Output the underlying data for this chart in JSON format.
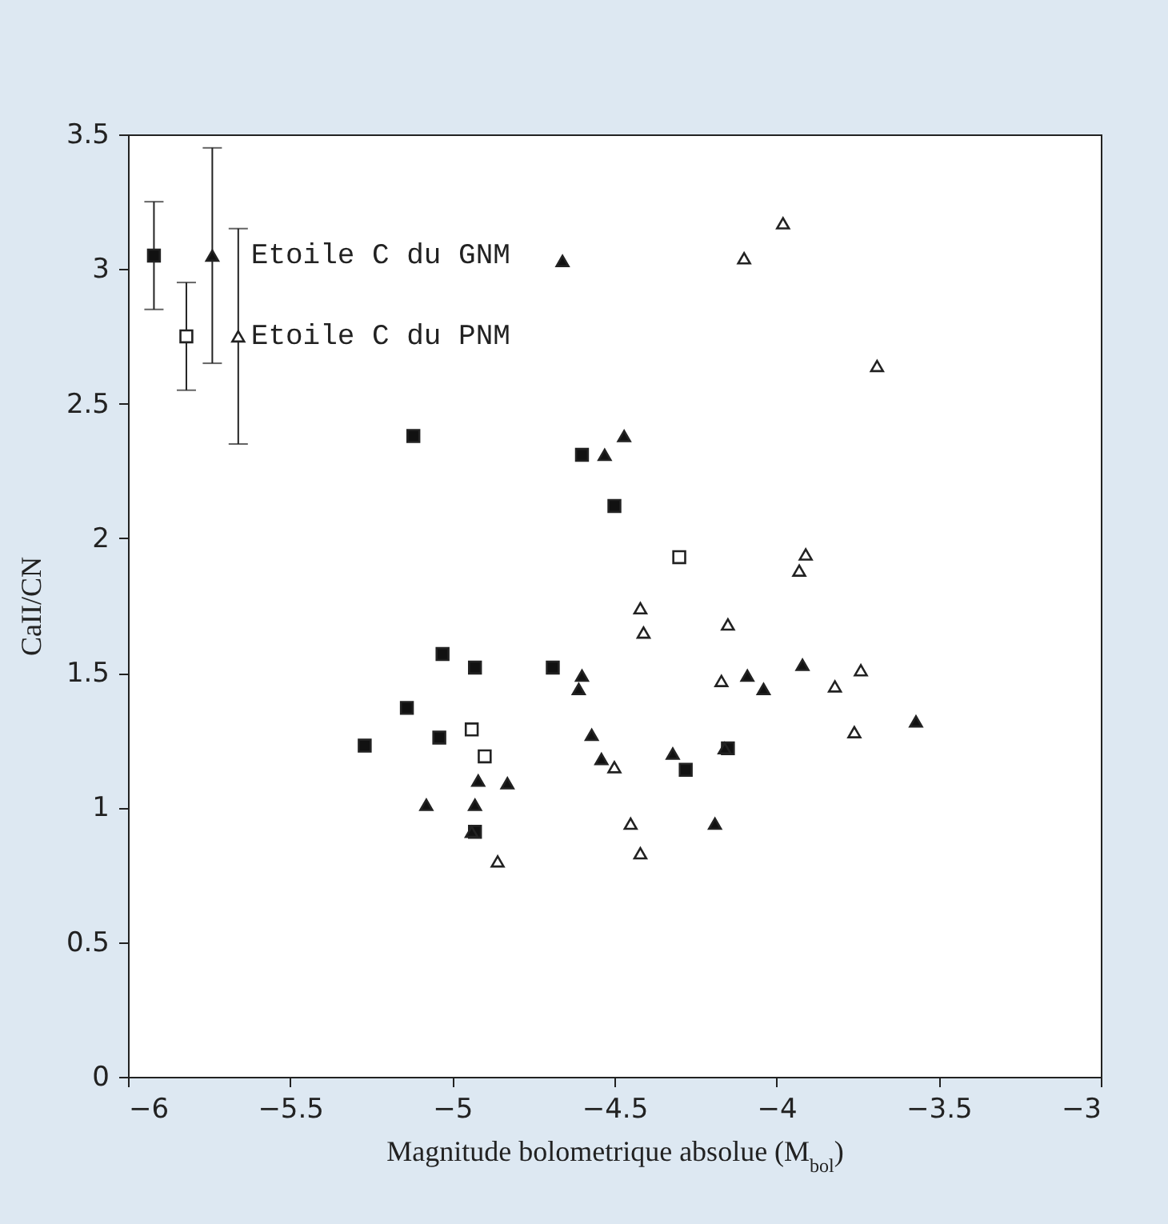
{
  "chart_data": {
    "type": "scatter",
    "xlabel": "Magnitude bolometrique absolue (M$_{bol}$)",
    "ylabel": "CaII/CN",
    "xlim": [
      -6,
      -3
    ],
    "xticks": [
      -6,
      -5.5,
      -5,
      -4.5,
      -4,
      -3.5,
      -3
    ],
    "ylim": [
      0,
      3.5
    ],
    "yticks": [
      0,
      0.5,
      1,
      1.5,
      2,
      2.5,
      3,
      3.5
    ],
    "grid": false,
    "annotations": [
      {
        "text": "Etoile C du GNM",
        "x": -5.66,
        "y": 3.05
      },
      {
        "text": "Etoile C du PNM",
        "x": -5.66,
        "y": 2.75
      }
    ],
    "series": [
      {
        "color": "#111111",
        "marker": "square",
        "x": [
          -5.92
        ],
        "values": [
          3.05
        ],
        "errors": [
          0.2
        ]
      },
      {
        "color": "#ffffff",
        "marker": "square",
        "x": [
          -5.82
        ],
        "values": [
          2.75
        ],
        "errors": [
          0.2
        ]
      },
      {
        "color": "#111111",
        "marker": "triangle",
        "x": [
          -5.74
        ],
        "values": [
          3.05
        ],
        "errors": [
          0.4
        ]
      },
      {
        "color": "#ffffff",
        "marker": "triangle",
        "x": [
          -5.66
        ],
        "values": [
          2.75
        ],
        "errors": [
          0.4
        ]
      },
      {
        "color": "#111111",
        "marker": "square",
        "x": [
          -5.12,
          -4.6,
          -4.5,
          -5.03,
          -4.93,
          -4.69,
          -5.14,
          -5.04,
          -5.27,
          -4.28,
          -4.15,
          -4.93
        ],
        "values": [
          2.38,
          2.31,
          2.12,
          1.57,
          1.52,
          1.52,
          1.37,
          1.26,
          1.23,
          1.14,
          1.22,
          0.91
        ]
      },
      {
        "color": "#111111",
        "marker": "triangle",
        "x": [
          -4.66,
          -4.53,
          -4.47,
          -4.6,
          -4.61,
          -4.09,
          -4.04,
          -4.57,
          -4.54,
          -4.32,
          -4.16,
          -4.92,
          -4.83,
          -5.08,
          -4.93,
          -4.94,
          -4.19,
          -3.92,
          -3.57
        ],
        "values": [
          3.03,
          2.31,
          2.38,
          1.49,
          1.44,
          1.49,
          1.44,
          1.27,
          1.18,
          1.2,
          1.22,
          1.1,
          1.09,
          1.01,
          1.01,
          0.91,
          0.94,
          1.53,
          1.32
        ]
      },
      {
        "color": "#ffffff",
        "marker": "square",
        "x": [
          -4.3,
          -4.94,
          -4.9
        ],
        "values": [
          1.93,
          1.29,
          1.19
        ]
      },
      {
        "color": "#ffffff",
        "marker": "triangle",
        "x": [
          -3.98,
          -4.1,
          -3.69,
          -3.91,
          -3.93,
          -4.42,
          -4.41,
          -4.15,
          -4.17,
          -4.5,
          -4.86,
          -4.45,
          -4.42,
          -3.74,
          -3.82,
          -3.76
        ],
        "values": [
          3.17,
          3.04,
          2.64,
          1.94,
          1.88,
          1.74,
          1.65,
          1.68,
          1.47,
          1.15,
          0.8,
          0.94,
          0.83,
          1.51,
          1.45,
          1.28
        ]
      }
    ]
  }
}
